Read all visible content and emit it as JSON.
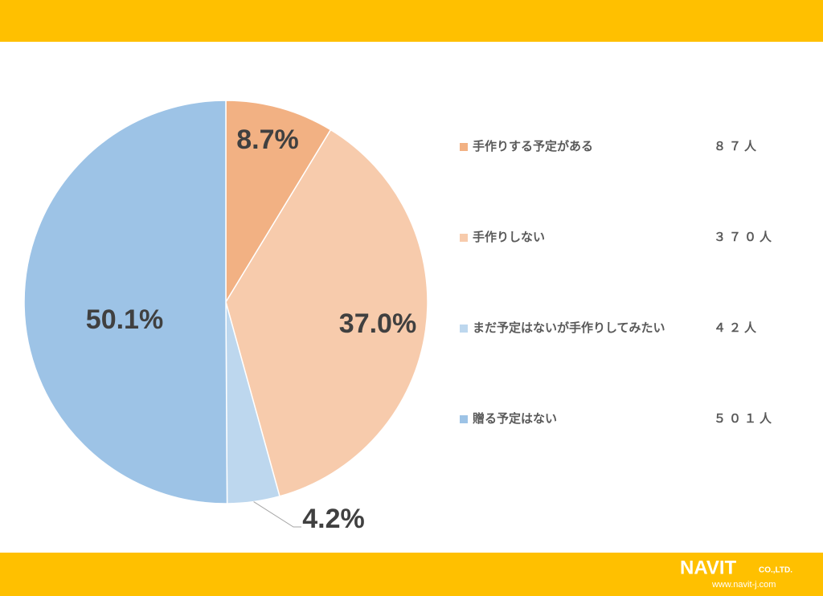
{
  "chart_data": {
    "type": "pie",
    "categories": [
      "手作りする予定がある",
      "手作りしない",
      "まだ予定はないが手作りしてみたい",
      "贈る予定はない"
    ],
    "values": [
      8.7,
      37.0,
      4.2,
      50.1
    ],
    "value_labels": [
      "8.7%",
      "37.0%",
      "4.2%",
      "50.1%"
    ],
    "counts": [
      87,
      370,
      42,
      501
    ],
    "count_labels": [
      "８７人",
      "３７０人",
      "４２人",
      "５０１人"
    ],
    "colors": [
      "#f2b183",
      "#f7cbac",
      "#bdd7ee",
      "#9dc3e6"
    ]
  },
  "footer": {
    "logo": "NAVIT",
    "company": "CO.,LTD.",
    "url": "www.navit-j.com"
  }
}
